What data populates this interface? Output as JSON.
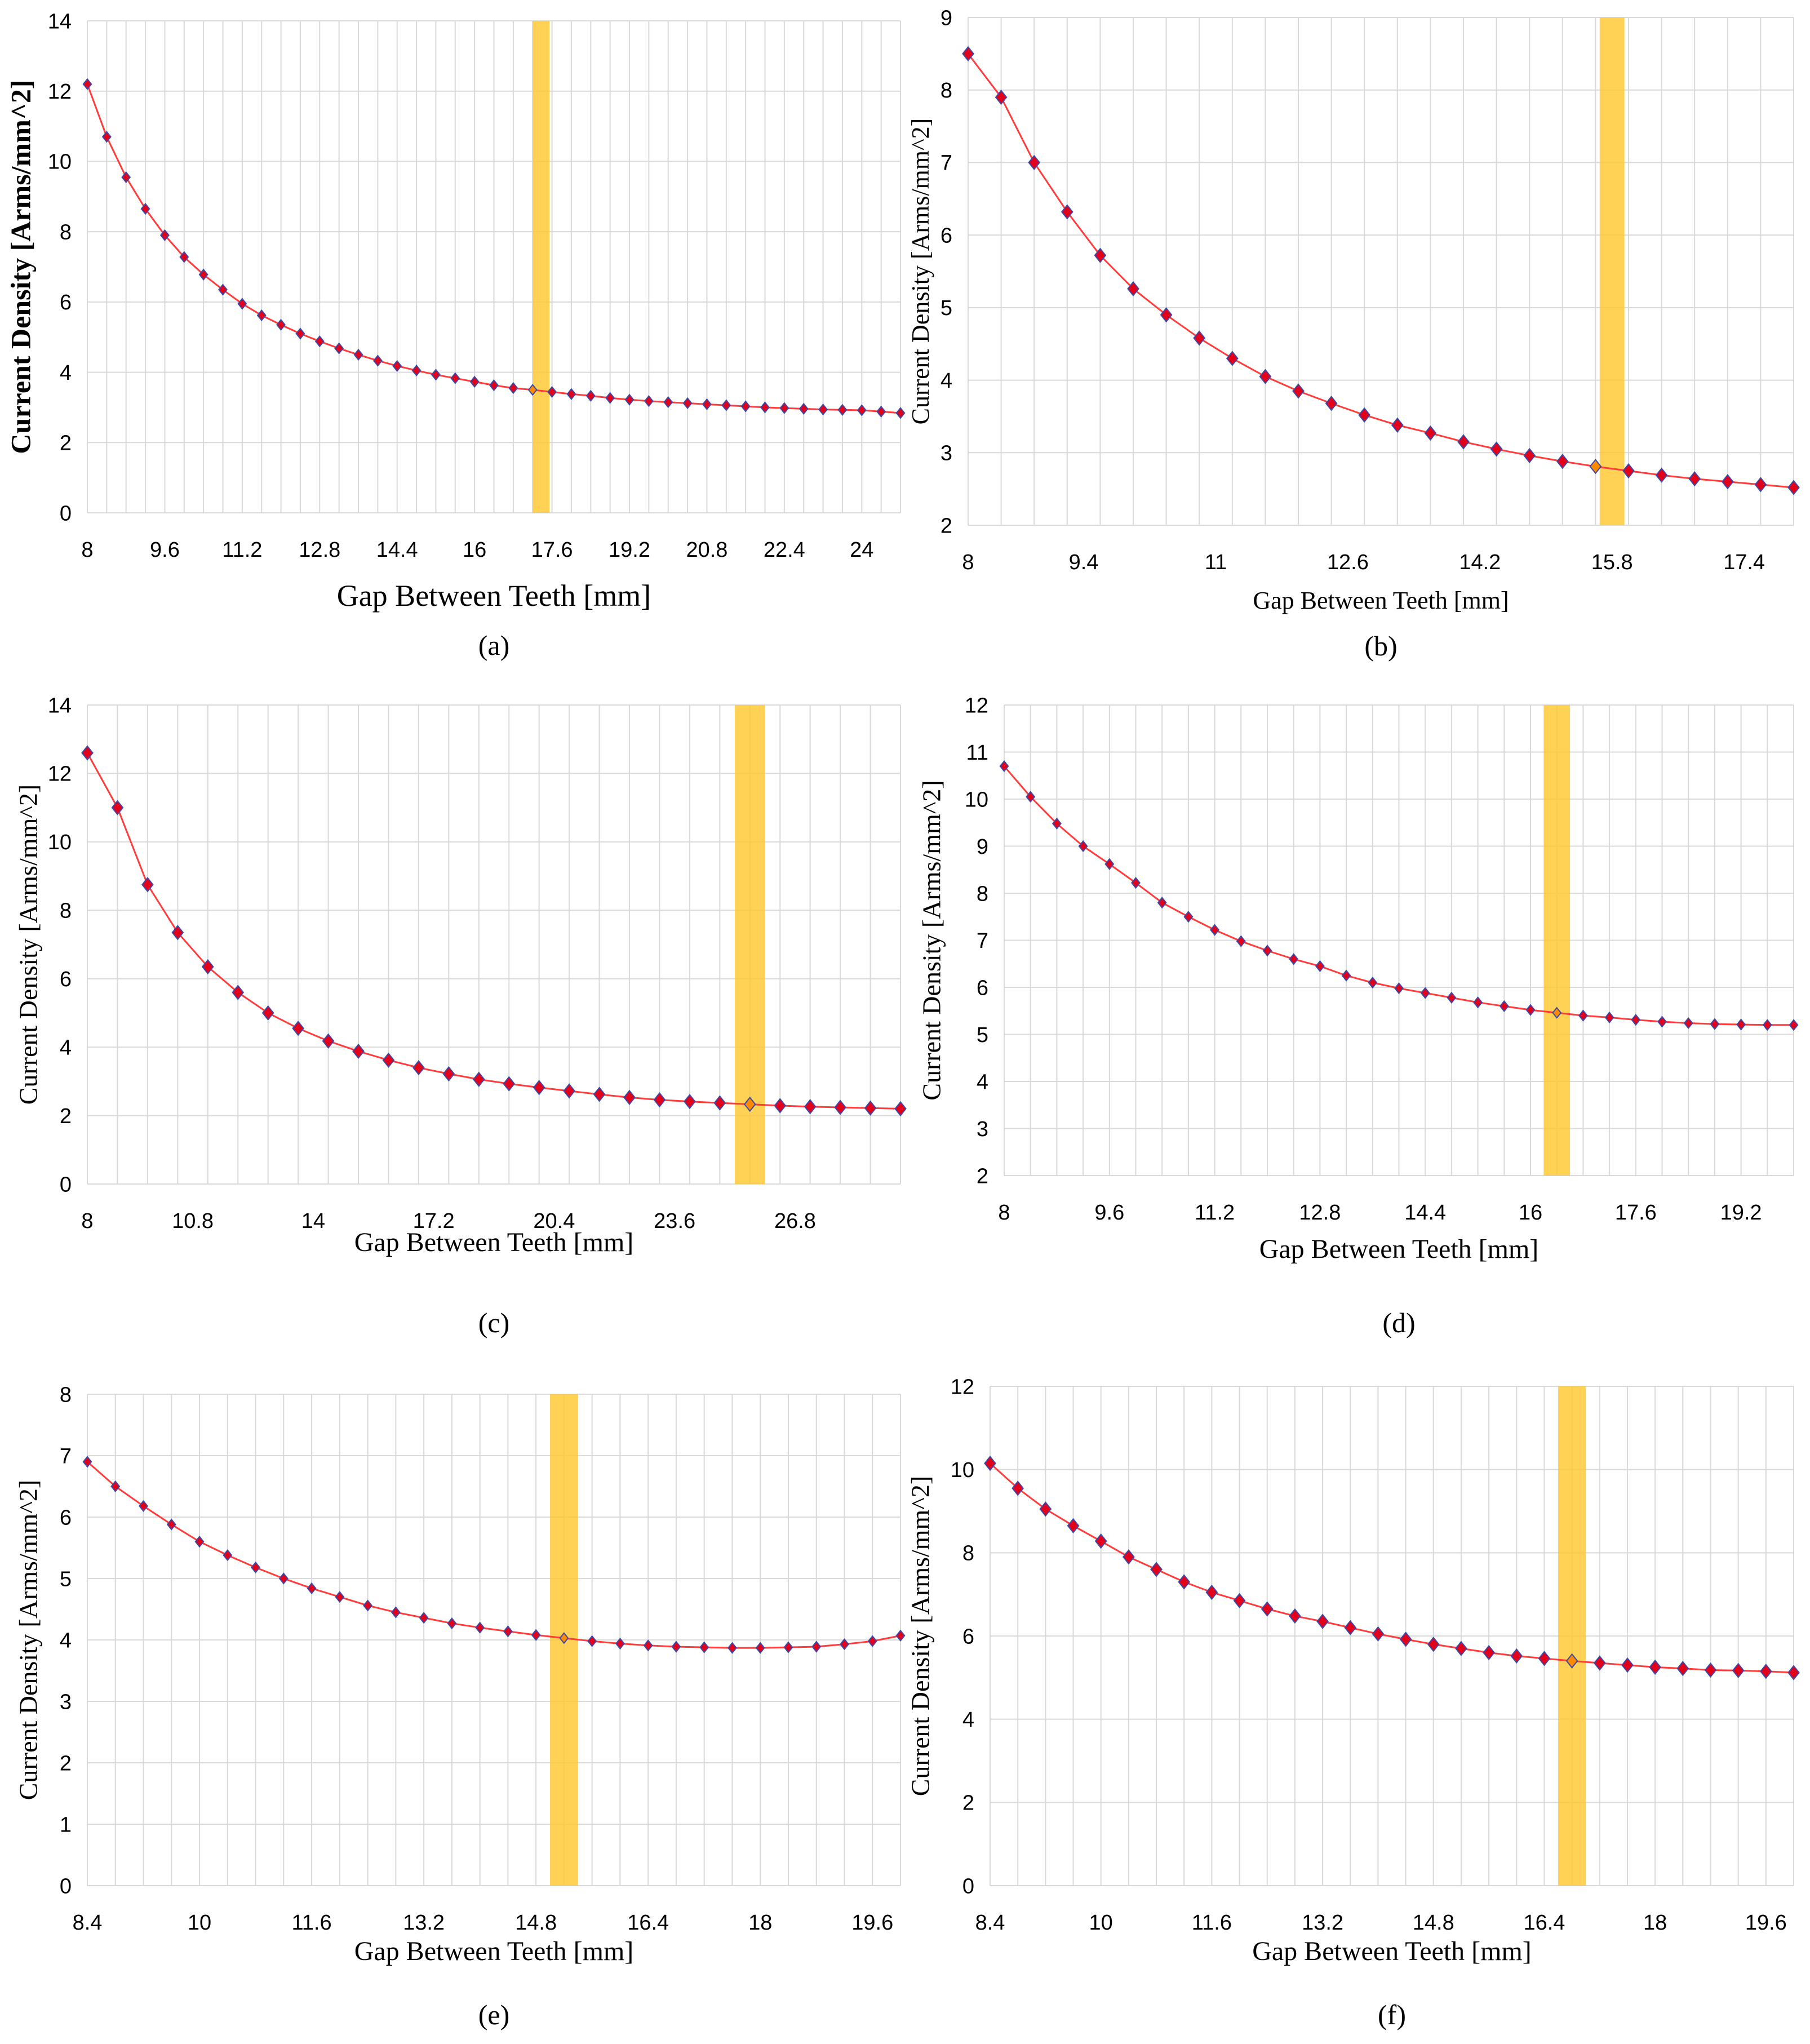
{
  "figure": {
    "colors": {
      "line": "#ff3b3b",
      "marker_fill": "#e3001b",
      "marker_edge": "#3a4aa8",
      "highlight": "#ffc72c",
      "highlight_marker": "#ff8a00",
      "grid": "#d9d9d9"
    }
  },
  "chart_data": [
    {
      "id": "a",
      "type": "line",
      "caption": "(a)",
      "xlabel": "Gap Between Teeth [mm]",
      "ylabel": "Current Density [Arms/mm^2]",
      "xlim": [
        8,
        24.8
      ],
      "ylim": [
        0,
        14
      ],
      "yticks": [
        0,
        2,
        4,
        6,
        8,
        10,
        12,
        14
      ],
      "xtick_values": [
        8,
        9.6,
        11.2,
        12.8,
        14.4,
        16,
        17.6,
        19.2,
        20.8,
        22.4,
        24
      ],
      "xtick_labels": [
        "8",
        "9.6",
        "11.2",
        "12.8",
        "14.4",
        "16",
        "17.6",
        "19.2",
        "20.8",
        "22.4",
        "24"
      ],
      "highlight_x": [
        17.2,
        17.4
      ],
      "highlight_index": 23,
      "x": [
        8,
        8.4,
        8.8,
        9.2,
        9.6,
        10,
        10.4,
        10.8,
        11.2,
        11.6,
        12,
        12.4,
        12.8,
        13.2,
        13.6,
        14,
        14.4,
        14.8,
        15.2,
        15.6,
        16,
        16.4,
        16.8,
        17.2,
        17.6,
        18,
        18.4,
        18.8,
        19.2,
        19.6,
        20,
        20.4,
        20.8,
        21.2,
        21.6,
        22,
        22.4,
        22.8,
        23.2,
        23.6,
        24,
        24.4,
        24.8
      ],
      "values": [
        12.2,
        10.7,
        9.55,
        8.65,
        7.9,
        7.28,
        6.78,
        6.35,
        5.95,
        5.62,
        5.35,
        5.1,
        4.88,
        4.68,
        4.5,
        4.33,
        4.18,
        4.05,
        3.93,
        3.83,
        3.73,
        3.63,
        3.55,
        3.5,
        3.44,
        3.38,
        3.33,
        3.27,
        3.22,
        3.18,
        3.15,
        3.12,
        3.09,
        3.06,
        3.03,
        3.0,
        2.98,
        2.96,
        2.94,
        2.93,
        2.92,
        2.88,
        2.84
      ]
    },
    {
      "id": "b",
      "type": "line",
      "caption": "(b)",
      "xlabel": "Gap Between Teeth [mm]",
      "ylabel": "Current Density [Arms/mm^2]",
      "xlim": [
        8,
        18
      ],
      "ylim": [
        2,
        9
      ],
      "yticks": [
        2,
        3,
        4,
        5,
        6,
        7,
        8,
        9
      ],
      "xtick_values": [
        8,
        9.4,
        11,
        12.6,
        14.2,
        15.8,
        17.4
      ],
      "xtick_labels": [
        "8",
        "9.4",
        "11",
        "12.6",
        "14.2",
        "15.8",
        "17.4"
      ],
      "highlight_x": [
        15.65,
        15.95
      ],
      "highlight_index": 19,
      "x": [
        8,
        8.4,
        8.8,
        9.2,
        9.6,
        10,
        10.4,
        10.8,
        11.2,
        11.6,
        12,
        12.4,
        12.8,
        13.2,
        13.6,
        14,
        14.4,
        14.8,
        15.2,
        15.6,
        16,
        16.4,
        16.8,
        17.2,
        17.6,
        18
      ],
      "values": [
        8.5,
        7.9,
        7.0,
        6.32,
        5.72,
        5.26,
        4.9,
        4.58,
        4.3,
        4.05,
        3.85,
        3.68,
        3.52,
        3.38,
        3.27,
        3.15,
        3.05,
        2.96,
        2.88,
        2.81,
        2.75,
        2.69,
        2.64,
        2.6,
        2.56,
        2.52
      ]
    },
    {
      "id": "c",
      "type": "line",
      "caption": "(c)",
      "xlabel": "Gap Between Teeth [mm]",
      "ylabel": "Current Density [Arms/mm^2]",
      "xlim": [
        8,
        29.6
      ],
      "ylim": [
        0,
        14
      ],
      "yticks": [
        0,
        2,
        4,
        6,
        8,
        10,
        12,
        14
      ],
      "xtick_values": [
        8,
        10.8,
        14,
        17.2,
        20.4,
        23.6,
        26.8
      ],
      "xtick_labels": [
        "8",
        "10.8",
        "14",
        "17.2",
        "20.4",
        "23.6",
        "26.8"
      ],
      "highlight_x": [
        25.2,
        26.0
      ],
      "highlight_index": 22,
      "x": [
        8,
        8.8,
        9.6,
        10.4,
        11.2,
        12,
        12.8,
        13.6,
        14.4,
        15.2,
        16,
        16.8,
        17.6,
        18.4,
        19.2,
        20,
        20.8,
        21.6,
        22.4,
        23.2,
        24,
        24.8,
        25.6,
        26.4,
        27.2,
        28,
        28.8,
        29.6
      ],
      "values": [
        12.6,
        11.0,
        8.75,
        7.35,
        6.35,
        5.6,
        5.0,
        4.55,
        4.18,
        3.88,
        3.62,
        3.4,
        3.22,
        3.06,
        2.93,
        2.82,
        2.72,
        2.62,
        2.53,
        2.46,
        2.41,
        2.37,
        2.33,
        2.29,
        2.26,
        2.24,
        2.22,
        2.2
      ]
    },
    {
      "id": "d",
      "type": "line",
      "caption": "(d)",
      "xlabel": "Gap Between Teeth [mm]",
      "ylabel": "Current Density [Arms/mm^2]",
      "xlim": [
        8,
        20.0
      ],
      "ylim": [
        2,
        12
      ],
      "yticks": [
        2,
        3,
        4,
        5,
        6,
        7,
        8,
        9,
        10,
        11,
        12
      ],
      "xtick_values": [
        8,
        9.6,
        11.2,
        12.8,
        14.4,
        16,
        17.6,
        19.2
      ],
      "xtick_labels": [
        "8",
        "9.6",
        "11.2",
        "12.8",
        "14.4",
        "16",
        "17.6",
        "19.2"
      ],
      "highlight_x": [
        16.2,
        16.6
      ],
      "highlight_index": 21,
      "x": [
        8,
        8.4,
        8.8,
        9.2,
        9.6,
        10,
        10.4,
        10.8,
        11.2,
        11.6,
        12,
        12.4,
        12.8,
        13.2,
        13.6,
        14,
        14.4,
        14.8,
        15.2,
        15.6,
        16,
        16.4,
        16.8,
        17.2,
        17.6,
        18,
        18.4,
        18.8,
        19.2,
        19.6,
        20.0
      ],
      "values": [
        10.7,
        10.05,
        9.48,
        9.0,
        8.62,
        8.22,
        7.8,
        7.5,
        7.22,
        6.98,
        6.78,
        6.6,
        6.45,
        6.25,
        6.1,
        5.98,
        5.88,
        5.78,
        5.68,
        5.6,
        5.52,
        5.46,
        5.4,
        5.36,
        5.31,
        5.27,
        5.24,
        5.22,
        5.21,
        5.2,
        5.2
      ]
    },
    {
      "id": "e",
      "type": "line",
      "caption": "(e)",
      "xlabel": "Gap Between Teeth [mm]",
      "ylabel": "Current Density [Arms/mm^2]",
      "xlim": [
        8.4,
        20.0
      ],
      "ylim": [
        0,
        8
      ],
      "yticks": [
        0,
        1,
        2,
        3,
        4,
        5,
        6,
        7,
        8
      ],
      "xtick_values": [
        8.4,
        10,
        11.6,
        13.2,
        14.8,
        16.4,
        18,
        19.6
      ],
      "xtick_labels": [
        "8.4",
        "10",
        "11.6",
        "13.2",
        "14.8",
        "16.4",
        "18",
        "19.6"
      ],
      "highlight_x": [
        15.0,
        15.4
      ],
      "highlight_index": 17,
      "x": [
        8.4,
        8.8,
        9.2,
        9.6,
        10,
        10.4,
        10.8,
        11.2,
        11.6,
        12,
        12.4,
        12.8,
        13.2,
        13.6,
        14,
        14.4,
        14.8,
        15.2,
        15.6,
        16,
        16.4,
        16.8,
        17.2,
        17.6,
        18,
        18.4,
        18.8,
        19.2,
        19.6,
        20.0
      ],
      "values": [
        6.9,
        6.5,
        6.18,
        5.88,
        5.6,
        5.38,
        5.18,
        5.0,
        4.84,
        4.7,
        4.56,
        4.45,
        4.36,
        4.27,
        4.2,
        4.14,
        4.08,
        4.03,
        3.98,
        3.94,
        3.91,
        3.89,
        3.88,
        3.87,
        3.87,
        3.88,
        3.89,
        3.93,
        3.98,
        4.07
      ]
    },
    {
      "id": "f",
      "type": "line",
      "caption": "(f)",
      "xlabel": "Gap Between Teeth [mm]",
      "ylabel": "Current Density [Arms/mm^2]",
      "xlim": [
        8.4,
        20.0
      ],
      "ylim": [
        0,
        12
      ],
      "yticks": [
        0,
        2,
        4,
        6,
        8,
        10,
        12
      ],
      "xtick_values": [
        8.4,
        10,
        11.6,
        13.2,
        14.8,
        16.4,
        18,
        19.6
      ],
      "xtick_labels": [
        "8.4",
        "10",
        "11.6",
        "13.2",
        "14.8",
        "16.4",
        "18",
        "19.6"
      ],
      "highlight_x": [
        16.6,
        17.0
      ],
      "highlight_index": 21,
      "x": [
        8.4,
        8.8,
        9.2,
        9.6,
        10,
        10.4,
        10.8,
        11.2,
        11.6,
        12,
        12.4,
        12.8,
        13.2,
        13.6,
        14,
        14.4,
        14.8,
        15.2,
        15.6,
        16,
        16.4,
        16.8,
        17.2,
        17.6,
        18,
        18.4,
        18.8,
        19.2,
        19.6,
        20.0
      ],
      "values": [
        10.15,
        9.55,
        9.05,
        8.65,
        8.28,
        7.9,
        7.6,
        7.3,
        7.05,
        6.85,
        6.65,
        6.48,
        6.35,
        6.2,
        6.05,
        5.92,
        5.8,
        5.7,
        5.6,
        5.52,
        5.46,
        5.4,
        5.35,
        5.3,
        5.25,
        5.22,
        5.18,
        5.17,
        5.15,
        5.12
      ]
    }
  ]
}
